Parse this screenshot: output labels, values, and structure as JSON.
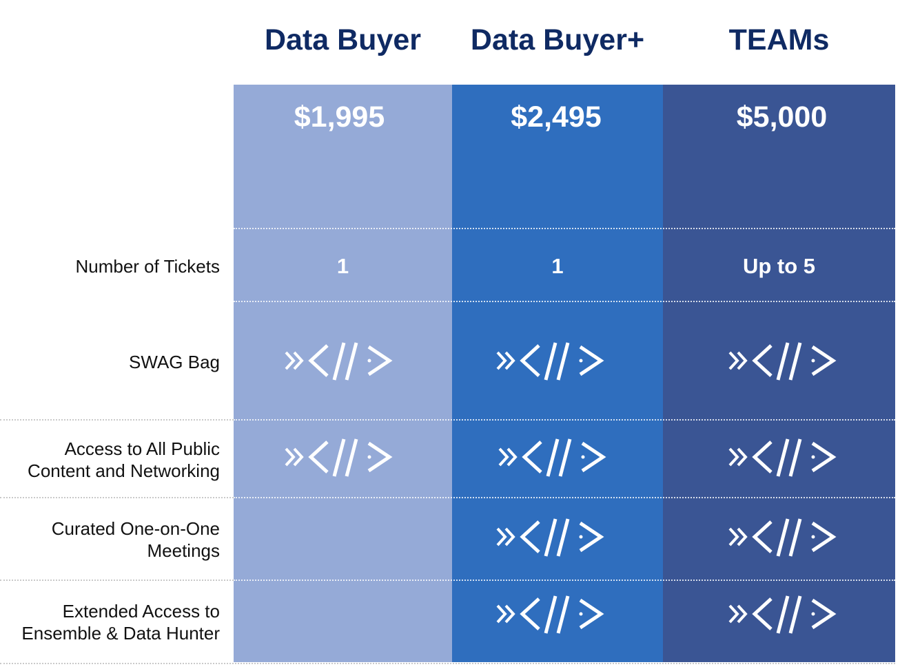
{
  "colors": {
    "header_text": "#0f2a63",
    "col_data_buyer": "#95aad7",
    "col_data_buyer_plus": "#2f6ebe",
    "col_teams": "#3a5594",
    "check_mark": "#ffffff"
  },
  "plans": [
    {
      "name": "Data Buyer",
      "price": "$1,995",
      "tickets": "1"
    },
    {
      "name": "Data Buyer+",
      "price": "$2,495",
      "tickets": "1"
    },
    {
      "name": "TEAMs",
      "price": "$5,000",
      "tickets": "Up to 5"
    }
  ],
  "features": [
    {
      "label": "Number of Tickets",
      "values": [
        "1",
        "1",
        "Up to 5"
      ]
    },
    {
      "label": "SWAG Bag",
      "included": [
        true,
        true,
        true
      ]
    },
    {
      "label_line1": "Access to All Public",
      "label_line2": "Content and Networking",
      "included": [
        true,
        true,
        true
      ]
    },
    {
      "label_line1": "Curated One-on-One",
      "label_line2": "Meetings",
      "included": [
        false,
        true,
        true
      ]
    },
    {
      "label_line1": "Extended Access to",
      "label_line2": "Ensemble & Data Hunter",
      "included": [
        false,
        true,
        true
      ]
    }
  ],
  "icons": {
    "included_mark": "brand-check-icon"
  }
}
